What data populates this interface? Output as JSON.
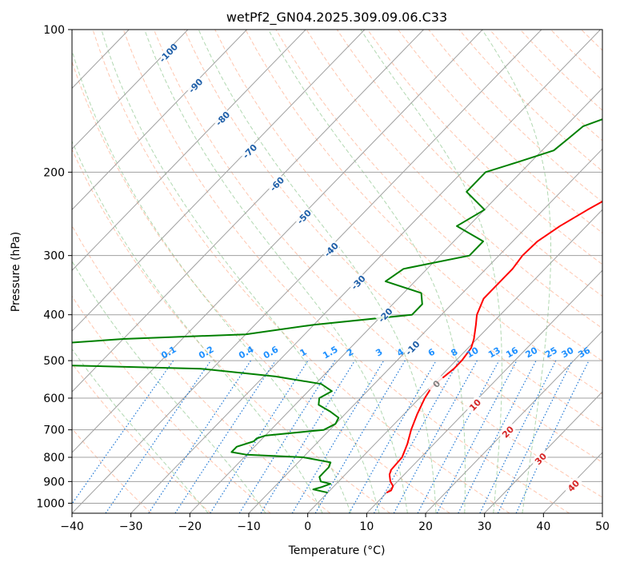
{
  "chart_data": {
    "type": "line",
    "title": "wetPf2_GN04.2025.309.09.06.C33",
    "xlabel": "Temperature (°C)",
    "ylabel": "Pressure (hPa)",
    "xlim": [
      -40,
      50
    ],
    "ylim": [
      1050,
      100
    ],
    "y_scale": "log",
    "grid": true,
    "x_ticks": [
      -40,
      -30,
      -20,
      -10,
      0,
      10,
      20,
      30,
      40,
      50
    ],
    "y_ticks": [
      100,
      200,
      300,
      400,
      500,
      600,
      700,
      800,
      900,
      1000
    ],
    "x_tick_labels": [
      "−40",
      "−30",
      "−20",
      "−10",
      "0",
      "10",
      "20",
      "30",
      "40",
      "50"
    ],
    "y_tick_labels": [
      "100",
      "200",
      "300",
      "400",
      "500",
      "600",
      "700",
      "800",
      "900",
      "1000"
    ],
    "colors": {
      "temperature": "#ff0000",
      "dewpoint": "#008000",
      "isotherm": "#a0a0a0",
      "dry_adiabat": "#ffa07a",
      "moist_adiabat": "#90c890",
      "mixing_ratio": "#1f77d4",
      "isotherm_label": "#1f5fa8",
      "mixing_label": "#1e90ff",
      "adiabat_label": "#d62728"
    },
    "series": [
      {
        "key": "temperature",
        "p": [
          950,
          940,
          920,
          900,
          870,
          850,
          800,
          750,
          700,
          650,
          600,
          570,
          550,
          520,
          500,
          470,
          450,
          420,
          400,
          370,
          350,
          320,
          300,
          280,
          260,
          240,
          220,
          200,
          180,
          160,
          140,
          120,
          100
        ],
        "t": [
          10,
          10.4,
          10,
          8.8,
          7.5,
          7,
          6.8,
          5.5,
          3.8,
          2.3,
          0.9,
          0.3,
          0.5,
          1,
          1,
          0.5,
          -0.5,
          -2.5,
          -4,
          -5.5,
          -5.5,
          -5.5,
          -6,
          -5.8,
          -4.5,
          -2.5,
          0,
          4.5,
          10,
          14.8,
          18.5,
          21,
          25
        ]
      },
      {
        "key": "dewpoint",
        "p": [
          950,
          935,
          925,
          910,
          900,
          880,
          860,
          840,
          820,
          800,
          790,
          780,
          760,
          740,
          730,
          720,
          700,
          680,
          660,
          640,
          620,
          600,
          580,
          560,
          540,
          520,
          510,
          500,
          470,
          450,
          440,
          420,
          400,
          380,
          360,
          340,
          320,
          300,
          280,
          260,
          240,
          220,
          200,
          190,
          180,
          170,
          160,
          150,
          140,
          120,
          100
        ],
        "t": [
          0,
          -3,
          -2,
          -1,
          -3,
          -4,
          -4,
          -4,
          -4.5,
          -10,
          -20,
          -23,
          -23,
          -21,
          -21,
          -20,
          -11,
          -10,
          -10.5,
          -13,
          -16,
          -17,
          -16,
          -19,
          -28,
          -42,
          -70,
          -80,
          -80,
          -60,
          -40,
          -30,
          -15,
          -15,
          -17,
          -25,
          -24,
          -15,
          -15,
          -22,
          -20,
          -26,
          -26,
          -22,
          -18,
          -17.5,
          -17,
          -13,
          -11,
          -7,
          -0.5
        ]
      }
    ],
    "isotherm_labels": [
      {
        "t": -100,
        "text": "-100"
      },
      {
        "t": -90,
        "text": "-90"
      },
      {
        "t": -80,
        "text": "-80"
      },
      {
        "t": -70,
        "text": "-70"
      },
      {
        "t": -60,
        "text": "-60"
      },
      {
        "t": -50,
        "text": "-50"
      },
      {
        "t": -40,
        "text": "-40"
      },
      {
        "t": -30,
        "text": "-30"
      },
      {
        "t": -20,
        "text": "-20"
      },
      {
        "t": -10,
        "text": "-10"
      },
      {
        "t": 0,
        "text": "0"
      },
      {
        "t": 10,
        "text": "10"
      },
      {
        "t": 20,
        "text": "20"
      },
      {
        "t": 30,
        "text": "30"
      },
      {
        "t": 40,
        "text": "40"
      }
    ],
    "mixing_ratio_labels": [
      {
        "w": 0.1,
        "text": "0.1"
      },
      {
        "w": 0.2,
        "text": "0.2"
      },
      {
        "w": 0.4,
        "text": "0.4"
      },
      {
        "w": 0.6,
        "text": "0.6"
      },
      {
        "w": 1,
        "text": "1"
      },
      {
        "w": 1.5,
        "text": "1.5"
      },
      {
        "w": 2,
        "text": "2"
      },
      {
        "w": 3,
        "text": "3"
      },
      {
        "w": 4,
        "text": "4"
      },
      {
        "w": 6,
        "text": "6"
      },
      {
        "w": 8,
        "text": "8"
      },
      {
        "w": 10,
        "text": "10"
      },
      {
        "w": 13,
        "text": "13"
      },
      {
        "w": 16,
        "text": "16"
      },
      {
        "w": 20,
        "text": "20"
      },
      {
        "w": 25,
        "text": "25"
      },
      {
        "w": 30,
        "text": "30"
      },
      {
        "w": 36,
        "text": "36"
      }
    ]
  }
}
